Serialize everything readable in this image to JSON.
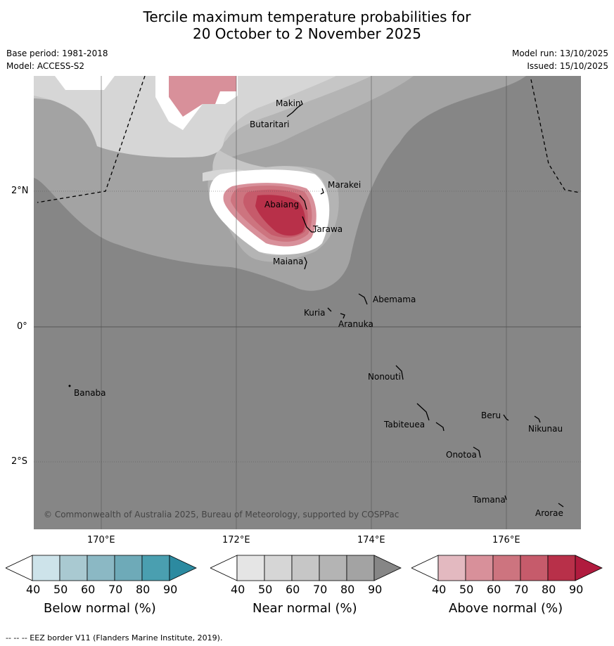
{
  "title_line1": "Tercile maximum temperature probabilities for",
  "title_line2": "20 October to 2 November 2025",
  "base_period": "Base period: 1981-2018",
  "model": "Model: ACCESS-S2",
  "model_run": "Model run: 13/10/2025",
  "issued": "Issued: 15/10/2025",
  "copyright": "© Commonwealth of Australia 2025, Bureau of Meteorology, supported by COSPPac",
  "lon_labels": [
    "170°E",
    "172°E",
    "174°E",
    "176°E"
  ],
  "lat_labels": [
    "2°N",
    "0°",
    "2°S"
  ],
  "places": {
    "makin": "Makin",
    "butaritari": "Butaritari",
    "marakei": "Marakei",
    "abaiang": "Abaiang",
    "tarawa": "Tarawa",
    "maiana": "Maiana",
    "abemama": "Abemama",
    "kuria": "Kuria",
    "aranuka": "Aranuka",
    "nonouti": "Nonouti",
    "banaba": "Banaba",
    "beru": "Beru",
    "nikunau": "Nikunau",
    "tabiteuea": "Tabiteuea",
    "onotoa": "Onotoa",
    "tamana": "Tamana",
    "arorae": "Arorae"
  },
  "colorbars": {
    "below": {
      "label": "Below normal (%)",
      "ticks": [
        "40",
        "50",
        "60",
        "70",
        "80",
        "90"
      ],
      "colors": [
        "#ffffff",
        "#cde3ea",
        "#a9c9d1",
        "#8bb8c4",
        "#6eaab8",
        "#4a9fb0",
        "#2c8aa0"
      ]
    },
    "near": {
      "label": "Near normal (%)",
      "ticks": [
        "40",
        "50",
        "60",
        "70",
        "80",
        "90"
      ],
      "colors": [
        "#ffffff",
        "#e5e5e5",
        "#d6d6d6",
        "#c6c6c6",
        "#b4b4b4",
        "#a3a3a3",
        "#868686"
      ]
    },
    "above": {
      "label": "Above normal (%)",
      "ticks": [
        "40",
        "50",
        "60",
        "70",
        "80",
        "90"
      ],
      "colors": [
        "#ffffff",
        "#e3b9c0",
        "#d8909a",
        "#cd747f",
        "#c65b6b",
        "#b83049",
        "#b01b3e"
      ]
    }
  },
  "footer": "--  --  -- EEZ border V11 (Flanders Marine Institute, 2019)."
}
